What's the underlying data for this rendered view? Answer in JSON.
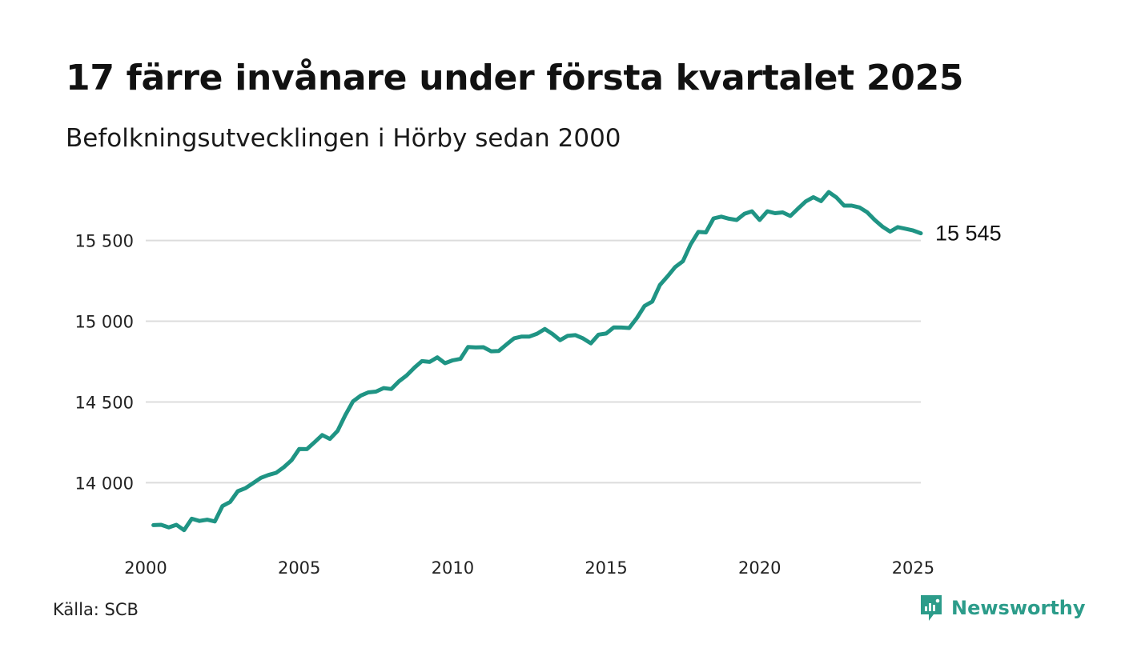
{
  "header": {
    "title": "17 färre invånare under första kvartalet 2025",
    "subtitle": "Befolkningsutvecklingen i Hörby sedan 2000"
  },
  "footer": {
    "source": "Källa: SCB",
    "brand": "Newsworthy"
  },
  "colors": {
    "line": "#1f9484",
    "grid": "#dcdcdc",
    "brand": "#2c9c8a"
  },
  "chart_data": {
    "type": "line",
    "title": "17 färre invånare under första kvartalet 2025",
    "subtitle": "Befolkningsutvecklingen i Hörby sedan 2000",
    "xlim": [
      2000,
      2025.25
    ],
    "ylim": [
      13640,
      15850
    ],
    "x_ticks": [
      2000,
      2005,
      2010,
      2015,
      2020,
      2025
    ],
    "x_tick_labels": [
      "2000",
      "2005",
      "2010",
      "2015",
      "2020",
      "2025"
    ],
    "y_ticks": [
      14000,
      14500,
      15000,
      15500
    ],
    "y_tick_labels": [
      "14 000",
      "14 500",
      "15 000",
      "15 500"
    ],
    "grid": true,
    "end_label": "15 545",
    "series": [
      {
        "x": [
          2000.25,
          2000.5,
          2000.75,
          2001,
          2001.25,
          2001.5,
          2001.75,
          2002,
          2002.25,
          2002.5,
          2002.75,
          2003,
          2003.25,
          2003.5,
          2003.75,
          2004,
          2004.25,
          2004.5,
          2004.75,
          2005,
          2005.25,
          2005.5,
          2005.75,
          2006,
          2006.25,
          2006.5,
          2006.75,
          2007,
          2007.25,
          2007.5,
          2007.75,
          2008,
          2008.25,
          2008.5,
          2008.75,
          2009,
          2009.25,
          2009.5,
          2009.75,
          2010,
          2010.25,
          2010.5,
          2010.75,
          2011,
          2011.25,
          2011.5,
          2011.75,
          2012,
          2012.25,
          2012.5,
          2012.75,
          2013,
          2013.25,
          2013.5,
          2013.75,
          2014,
          2014.25,
          2014.5,
          2014.75,
          2015,
          2015.25,
          2015.5,
          2015.75,
          2016,
          2016.25,
          2016.5,
          2016.75,
          2017,
          2017.25,
          2017.5,
          2017.75,
          2018,
          2018.25,
          2018.5,
          2018.75,
          2019,
          2019.25,
          2019.5,
          2019.75,
          2020,
          2020.25,
          2020.5,
          2020.75,
          2021,
          2021.25,
          2021.5,
          2021.75,
          2022,
          2022.25,
          2022.5,
          2022.75,
          2023,
          2023.25,
          2023.5,
          2023.75,
          2024,
          2024.25,
          2024.5,
          2024.75,
          2025,
          2025.25
        ],
        "values": [
          13737,
          13739,
          13723,
          13739,
          13706,
          13777,
          13763,
          13771,
          13760,
          13855,
          13881,
          13947,
          13966,
          13998,
          14030,
          14048,
          14061,
          14096,
          14139,
          14209,
          14208,
          14251,
          14295,
          14271,
          14321,
          14418,
          14503,
          14539,
          14559,
          14564,
          14586,
          14580,
          14628,
          14664,
          14712,
          14753,
          14748,
          14776,
          14740,
          14758,
          14767,
          14840,
          14838,
          14839,
          14814,
          14816,
          14856,
          14894,
          14905,
          14905,
          14923,
          14952,
          14921,
          14883,
          14910,
          14914,
          14893,
          14863,
          14917,
          14924,
          14962,
          14961,
          14958,
          15020,
          15095,
          15122,
          15224,
          15278,
          15336,
          15372,
          15476,
          15553,
          15550,
          15637,
          15648,
          15635,
          15627,
          15665,
          15681,
          15627,
          15681,
          15669,
          15674,
          15652,
          15698,
          15742,
          15768,
          15744,
          15800,
          15767,
          15716,
          15716,
          15705,
          15675,
          15627,
          15586,
          15555,
          15583,
          15573,
          15562,
          15545
        ]
      }
    ]
  }
}
